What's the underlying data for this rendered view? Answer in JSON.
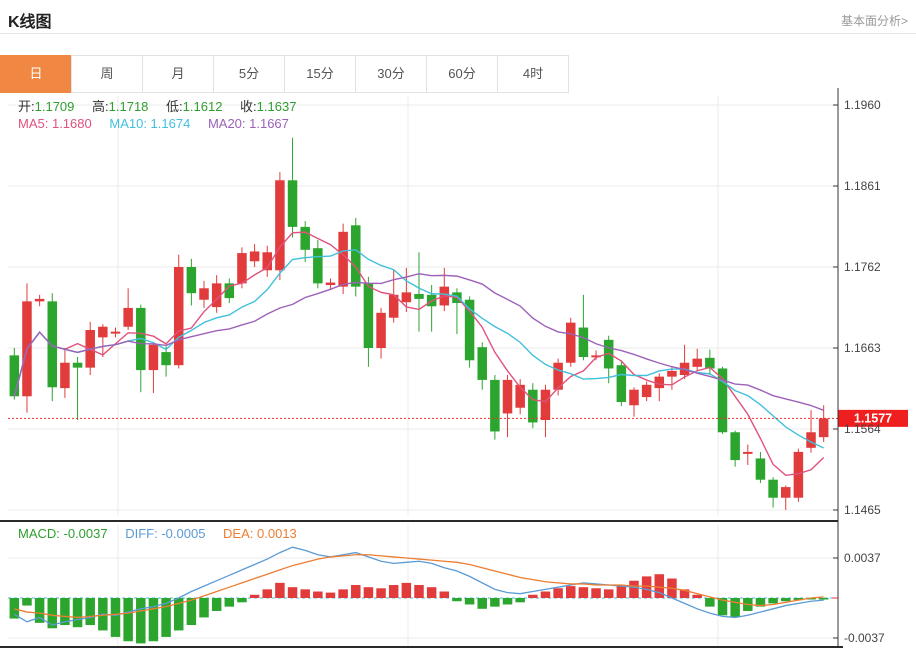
{
  "header": {
    "title": "K线图",
    "link_label": "基本面分析>"
  },
  "tabs": {
    "active_index": 0,
    "items": [
      {
        "key": "day",
        "label": "日"
      },
      {
        "key": "week",
        "label": "周"
      },
      {
        "key": "month",
        "label": "月"
      },
      {
        "key": "m5",
        "label": "5分"
      },
      {
        "key": "m15",
        "label": "15分"
      },
      {
        "key": "m30",
        "label": "30分"
      },
      {
        "key": "m60",
        "label": "60分"
      },
      {
        "key": "h4",
        "label": "4时"
      }
    ]
  },
  "ohlc_legend": {
    "open_label": "开:",
    "open": "1.1709",
    "high_label": "高:",
    "high": "1.1718",
    "low_label": "低:",
    "low": "1.1612",
    "close_label": "收:",
    "close": "1.1637"
  },
  "ma_legend": {
    "ma5_label": "MA5: ",
    "ma5": "1.1680",
    "ma10_label": "MA10: ",
    "ma10": "1.1674",
    "ma20_label": "MA20: ",
    "ma20": "1.1667"
  },
  "macd_legend": {
    "macd_label": "MACD: ",
    "macd": "-0.0037",
    "diff_label": "DIFF: ",
    "diff": "-0.0005",
    "dea_label": "DEA: ",
    "dea": "0.0013"
  },
  "colors": {
    "up_candle": "#e23b3b",
    "down_candle": "#2ca52f",
    "ma5": "#e0527e",
    "ma10": "#41c0dc",
    "ma20": "#9d62b8",
    "diff_line": "#5b9bd5",
    "dea_line": "#ed7d31",
    "tab_active_bg": "#f08743",
    "price_line": "#f03030",
    "badge_bg": "#f01f1f",
    "axis_line": "#333333",
    "axis_text": "#444444",
    "grid": "#ebebeb"
  },
  "chart_data": {
    "type": "candlestick",
    "panels": [
      "price",
      "macd"
    ],
    "title": "K线图",
    "legend_position": "top-left",
    "grid": true,
    "price_axis": {
      "labels": [
        "1.1960",
        "1.1861",
        "1.1762",
        "1.1663",
        "1.1564",
        "1.1465"
      ],
      "values": [
        1.196,
        1.1861,
        1.1762,
        1.1663,
        1.1564,
        1.1465
      ],
      "min": 1.1446,
      "max": 1.1971
    },
    "macd_axis": {
      "labels": [
        "0.0037",
        "-0.0037"
      ],
      "values": [
        0.0037,
        -0.0037
      ]
    },
    "current_price": {
      "label": "1.1577",
      "value": 1.1577
    },
    "ma_periods": [
      5,
      10,
      20
    ],
    "candles": [
      [
        1.1654,
        1.1663,
        1.16,
        1.1604
      ],
      [
        1.1604,
        1.1742,
        1.1584,
        1.172
      ],
      [
        1.172,
        1.1728,
        1.1714,
        1.1723
      ],
      [
        1.172,
        1.173,
        1.1598,
        1.1615
      ],
      [
        1.1614,
        1.1663,
        1.1602,
        1.1645
      ],
      [
        1.1645,
        1.1652,
        1.1575,
        1.1639
      ],
      [
        1.1639,
        1.1695,
        1.163,
        1.1685
      ],
      [
        1.1676,
        1.1692,
        1.1652,
        1.1689
      ],
      [
        1.1681,
        1.1688,
        1.1676,
        1.1683
      ],
      [
        1.1689,
        1.1736,
        1.1685,
        1.1712
      ],
      [
        1.1712,
        1.1716,
        1.1609,
        1.1636
      ],
      [
        1.1636,
        1.167,
        1.1608,
        1.1667
      ],
      [
        1.1658,
        1.1665,
        1.1628,
        1.1642
      ],
      [
        1.1642,
        1.1777,
        1.1638,
        1.1762
      ],
      [
        1.1762,
        1.1772,
        1.1715,
        1.173
      ],
      [
        1.1722,
        1.1745,
        1.1712,
        1.1736
      ],
      [
        1.1713,
        1.1752,
        1.1706,
        1.1742
      ],
      [
        1.1742,
        1.1748,
        1.1718,
        1.1724
      ],
      [
        1.1742,
        1.1786,
        1.1736,
        1.1779
      ],
      [
        1.1769,
        1.179,
        1.1762,
        1.1781
      ],
      [
        1.1758,
        1.1788,
        1.175,
        1.178
      ],
      [
        1.1758,
        1.1878,
        1.1746,
        1.1868
      ],
      [
        1.1868,
        1.192,
        1.1798,
        1.1811
      ],
      [
        1.1811,
        1.1818,
        1.1768,
        1.1783
      ],
      [
        1.1785,
        1.1795,
        1.1736,
        1.1742
      ],
      [
        1.174,
        1.1748,
        1.1734,
        1.1743
      ],
      [
        1.1738,
        1.1815,
        1.1729,
        1.1805
      ],
      [
        1.1813,
        1.1822,
        1.1726,
        1.1738
      ],
      [
        1.1742,
        1.175,
        1.164,
        1.1663
      ],
      [
        1.1663,
        1.1712,
        1.165,
        1.1706
      ],
      [
        1.17,
        1.1758,
        1.1694,
        1.1728
      ],
      [
        1.1719,
        1.1761,
        1.1707,
        1.1731
      ],
      [
        1.1729,
        1.178,
        1.1683,
        1.1723
      ],
      [
        1.1728,
        1.174,
        1.1683,
        1.1714
      ],
      [
        1.1715,
        1.1761,
        1.1708,
        1.1738
      ],
      [
        1.1731,
        1.1736,
        1.168,
        1.1718
      ],
      [
        1.1722,
        1.1726,
        1.1639,
        1.1648
      ],
      [
        1.1664,
        1.167,
        1.1612,
        1.1624
      ],
      [
        1.1624,
        1.163,
        1.1551,
        1.1561
      ],
      [
        1.1583,
        1.163,
        1.1554,
        1.1624
      ],
      [
        1.159,
        1.1625,
        1.1582,
        1.1618
      ],
      [
        1.1612,
        1.162,
        1.1565,
        1.1572
      ],
      [
        1.1575,
        1.1618,
        1.1554,
        1.1612
      ],
      [
        1.1612,
        1.165,
        1.1605,
        1.1645
      ],
      [
        1.1645,
        1.17,
        1.164,
        1.1694
      ],
      [
        1.1688,
        1.1728,
        1.1648,
        1.1652
      ],
      [
        1.1652,
        1.166,
        1.1648,
        1.1654
      ],
      [
        1.1673,
        1.1678,
        1.162,
        1.1638
      ],
      [
        1.1642,
        1.1648,
        1.1592,
        1.1597
      ],
      [
        1.1593,
        1.1615,
        1.1579,
        1.1612
      ],
      [
        1.1603,
        1.1622,
        1.1598,
        1.1618
      ],
      [
        1.1614,
        1.1632,
        1.1598,
        1.1628
      ],
      [
        1.1628,
        1.164,
        1.1612,
        1.1635
      ],
      [
        1.163,
        1.1667,
        1.1625,
        1.1645
      ],
      [
        1.164,
        1.1662,
        1.1635,
        1.165
      ],
      [
        1.1651,
        1.1661,
        1.163,
        1.1638
      ],
      [
        1.1638,
        1.164,
        1.1558,
        1.156
      ],
      [
        1.156,
        1.1562,
        1.1518,
        1.1526
      ],
      [
        1.1534,
        1.1545,
        1.152,
        1.1536
      ],
      [
        1.1528,
        1.1536,
        1.1498,
        1.1502
      ],
      [
        1.1502,
        1.1505,
        1.1468,
        1.148
      ],
      [
        1.148,
        1.1495,
        1.1465,
        1.1493
      ],
      [
        1.148,
        1.154,
        1.1475,
        1.1536
      ],
      [
        1.1541,
        1.1587,
        1.1535,
        1.156
      ],
      [
        1.1554,
        1.1593,
        1.1548,
        1.1577
      ]
    ],
    "macd": {
      "scale": 0.0001,
      "hist": [
        -19,
        -7,
        -23,
        -28,
        -25,
        -27,
        -25,
        -30,
        -36,
        -40,
        -42,
        -40,
        -36,
        -30,
        -25,
        -18,
        -12,
        -8,
        -4,
        3,
        8,
        14,
        10,
        8,
        6,
        5,
        8,
        12,
        10,
        9,
        12,
        14,
        12,
        10,
        6,
        -3,
        -6,
        -10,
        -8,
        -6,
        -4,
        3,
        6,
        9,
        11,
        10,
        9,
        8,
        12,
        16,
        20,
        22,
        18,
        8,
        3,
        -8,
        -16,
        -18,
        -12,
        -8,
        -5,
        -3,
        -2,
        -1,
        -1
      ],
      "diff": [
        -15,
        -22,
        -18,
        -25,
        -22,
        -20,
        -18,
        -15,
        -16,
        -13,
        -10,
        -8,
        -5,
        0,
        6,
        11,
        16,
        21,
        26,
        31,
        36,
        42,
        47,
        44,
        40,
        38,
        40,
        42,
        38,
        34,
        32,
        33,
        34,
        32,
        28,
        25,
        20,
        14,
        8,
        5,
        4,
        6,
        8,
        10,
        12,
        14,
        13,
        12,
        11,
        10,
        8,
        5,
        0,
        -5,
        -10,
        -14,
        -17,
        -18,
        -16,
        -13,
        -10,
        -7,
        -5,
        -3,
        -2
      ],
      "dea": [
        -10,
        -13,
        -14,
        -16,
        -17,
        -18,
        -17,
        -16,
        -15,
        -14,
        -12,
        -10,
        -8,
        -5,
        -2,
        2,
        6,
        10,
        14,
        18,
        22,
        26,
        30,
        33,
        36,
        38,
        39,
        40,
        40,
        39,
        38,
        37,
        36,
        35,
        34,
        33,
        31,
        28,
        25,
        22,
        19,
        17,
        15,
        14,
        13,
        13,
        12,
        12,
        12,
        11,
        11,
        10,
        9,
        7,
        4,
        1,
        -2,
        -4,
        -6,
        -7,
        -6,
        -4,
        -2,
        0,
        1
      ]
    }
  }
}
